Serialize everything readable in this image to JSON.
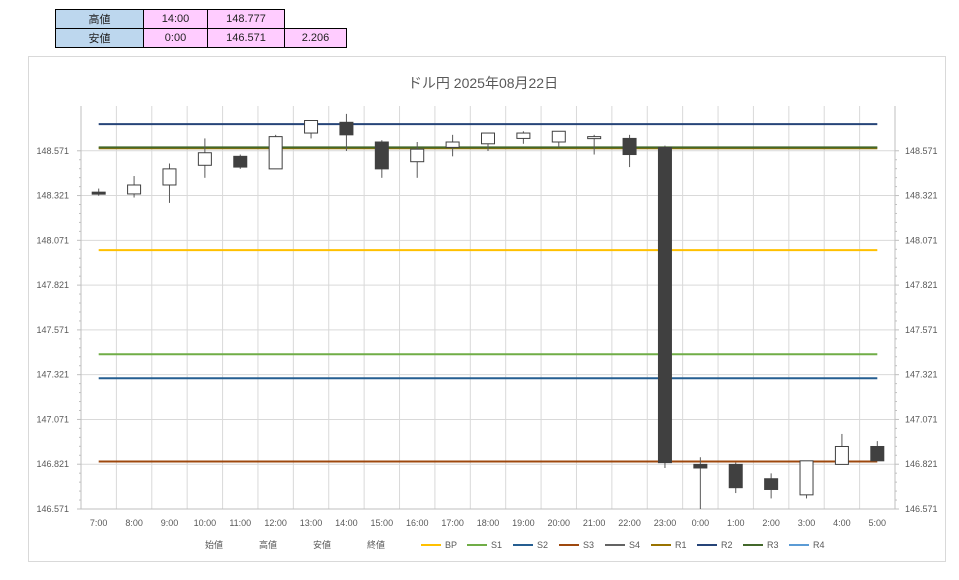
{
  "summary": {
    "high_label": "高値",
    "high_time": "14:00",
    "high_value": "148.777",
    "low_label": "安値",
    "low_time": "0:00",
    "low_value": "146.571",
    "range_value": "2.206"
  },
  "chart_data": {
    "type": "candlestick",
    "title": "ドル円 2025年08月22日",
    "xlabel": "",
    "ylabel": "",
    "ylim": [
      146.571,
      148.821
    ],
    "yticks": [
      "146.571",
      "146.821",
      "147.071",
      "147.321",
      "147.571",
      "147.821",
      "148.071",
      "148.321",
      "148.571"
    ],
    "grid": true,
    "legend_position": "bottom",
    "categories": [
      "7:00",
      "8:00",
      "9:00",
      "10:00",
      "11:00",
      "12:00",
      "13:00",
      "14:00",
      "15:00",
      "16:00",
      "17:00",
      "18:00",
      "19:00",
      "20:00",
      "21:00",
      "22:00",
      "23:00",
      "0:00",
      "1:00",
      "2:00",
      "3:00",
      "4:00",
      "5:00"
    ],
    "series": [
      {
        "name": "始値",
        "values": [
          148.34,
          148.33,
          148.38,
          148.49,
          148.54,
          148.47,
          148.67,
          148.73,
          148.62,
          148.51,
          148.59,
          148.61,
          148.64,
          148.62,
          148.64,
          148.64,
          148.59,
          146.82,
          146.82,
          146.74,
          146.65,
          146.82,
          146.92
        ]
      },
      {
        "name": "高値",
        "values": [
          148.36,
          148.43,
          148.5,
          148.64,
          148.55,
          148.66,
          148.73,
          148.777,
          148.63,
          148.62,
          148.66,
          148.67,
          148.68,
          148.68,
          148.66,
          148.66,
          148.6,
          146.86,
          146.83,
          146.77,
          146.84,
          146.99,
          146.95
        ]
      },
      {
        "name": "安値",
        "values": [
          148.32,
          148.31,
          148.28,
          148.42,
          148.47,
          148.47,
          148.64,
          148.57,
          148.42,
          148.42,
          148.54,
          148.57,
          148.61,
          148.59,
          148.55,
          148.48,
          146.8,
          146.571,
          146.66,
          146.63,
          146.63,
          146.82,
          146.86
        ]
      },
      {
        "name": "終値",
        "values": [
          148.33,
          148.38,
          148.47,
          148.56,
          148.48,
          148.65,
          148.74,
          148.66,
          148.47,
          148.58,
          148.62,
          148.67,
          148.67,
          148.68,
          148.65,
          148.55,
          146.83,
          146.8,
          146.69,
          146.68,
          146.84,
          146.92,
          146.84
        ]
      }
    ],
    "levels": [
      {
        "name": "BP",
        "value": 148.016,
        "color": "#ffc000"
      },
      {
        "name": "S1",
        "value": 147.435,
        "color": "#70ad47"
      },
      {
        "name": "S2",
        "value": 147.301,
        "color": "#255e91"
      },
      {
        "name": "S3",
        "value": 146.836,
        "color": "#9e480e"
      },
      {
        "name": "S4",
        "value": null,
        "color": "#636363"
      },
      {
        "name": "R1",
        "value": 148.585,
        "color": "#997300"
      },
      {
        "name": "R2",
        "value": 148.72,
        "color": "#264478"
      },
      {
        "name": "R3",
        "value": 148.59,
        "color": "#43682b"
      },
      {
        "name": "R4",
        "value": null,
        "color": "#5b9bd5"
      }
    ],
    "colors": {
      "up": "#ffffff",
      "down": "#404040",
      "wick": "#595959",
      "grid": "#d9d9d9"
    }
  }
}
